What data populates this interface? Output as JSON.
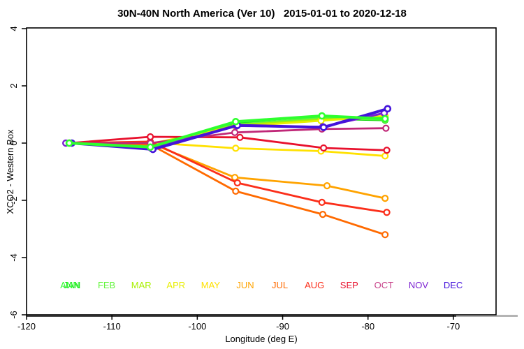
{
  "title": "30N-40N North America (Ver 10)   2015-01-01 to 2020-12-18",
  "chart_data": {
    "type": "line",
    "title": "30N-40N North America (Ver 10)   2015-01-01 to 2020-12-18",
    "xlabel": "Longitude (deg E)",
    "ylabel": "XCO2 - Western Box",
    "xlim": [
      -120,
      -65
    ],
    "ylim": [
      -6,
      4
    ],
    "grid": false,
    "x_ticks": [
      {
        "v": -120,
        "label": "-120"
      },
      {
        "v": -110,
        "label": "-110"
      },
      {
        "v": -100,
        "label": "-100"
      },
      {
        "v": -90,
        "label": "-90"
      },
      {
        "v": -80,
        "label": "-80"
      },
      {
        "v": -70,
        "label": "-70"
      }
    ],
    "y_ticks": [
      {
        "v": 4,
        "label": "4"
      },
      {
        "v": 2,
        "label": "2"
      },
      {
        "v": 0,
        "label": "0"
      },
      {
        "v": -2,
        "label": "-2"
      },
      {
        "v": -4,
        "label": "-4"
      },
      {
        "v": -6,
        "label": "-6"
      }
    ],
    "legend_position": "bottom-inside",
    "series": [
      {
        "name": "JAN",
        "color": "#0fd60f",
        "width": 2.8,
        "marker_stroke": 2.2,
        "points": [
          [
            -115,
            0
          ],
          [
            -105.5,
            -0.12
          ],
          [
            -95.5,
            0.68
          ],
          [
            -85.5,
            0.85
          ],
          [
            -78,
            0.8
          ]
        ]
      },
      {
        "name": "FEB",
        "color": "#62f53c",
        "width": 2.8,
        "marker_stroke": 2.2,
        "points": [
          [
            -115,
            0
          ],
          [
            -105.5,
            -0.1
          ],
          [
            -95.5,
            0.65
          ],
          [
            -85.5,
            0.88
          ],
          [
            -78,
            0.82
          ]
        ]
      },
      {
        "name": "MAR",
        "color": "#a8f000",
        "width": 2.8,
        "marker_stroke": 2.2,
        "points": [
          [
            -115,
            0
          ],
          [
            -105.5,
            -0.06
          ],
          [
            -95.5,
            0.62
          ],
          [
            -85.5,
            0.82
          ],
          [
            -78,
            0.9
          ]
        ]
      },
      {
        "name": "APR",
        "color": "#e8ee00",
        "width": 2.8,
        "marker_stroke": 2.2,
        "points": [
          [
            -115,
            0
          ],
          [
            -105.5,
            -0.02
          ],
          [
            -95.5,
            0.58
          ],
          [
            -85.5,
            0.78
          ],
          [
            -78,
            0.95
          ]
        ]
      },
      {
        "name": "MAY",
        "color": "#ffe100",
        "width": 2.8,
        "marker_stroke": 2.2,
        "points": [
          [
            -115,
            0
          ],
          [
            -105.5,
            0.02
          ],
          [
            -95.5,
            -0.18
          ],
          [
            -85.5,
            -0.28
          ],
          [
            -78,
            -0.45
          ]
        ]
      },
      {
        "name": "JUN",
        "color": "#ffa300",
        "width": 2.8,
        "marker_stroke": 2.2,
        "points": [
          [
            -115,
            0
          ],
          [
            -105.5,
            0.0
          ],
          [
            -95.6,
            -1.2
          ],
          [
            -84.8,
            -1.49
          ],
          [
            -78,
            -1.93
          ]
        ]
      },
      {
        "name": "JUL",
        "color": "#ff6a00",
        "width": 2.8,
        "marker_stroke": 2.2,
        "points": [
          [
            -115,
            0
          ],
          [
            -105.5,
            -0.05
          ],
          [
            -95.5,
            -1.68
          ],
          [
            -85.3,
            -2.49
          ],
          [
            -78,
            -3.2
          ]
        ]
      },
      {
        "name": "AUG",
        "color": "#fb2e1a",
        "width": 2.8,
        "marker_stroke": 2.2,
        "points": [
          [
            -115,
            0
          ],
          [
            -105.5,
            0.05
          ],
          [
            -95.3,
            -1.39
          ],
          [
            -85.4,
            -2.07
          ],
          [
            -77.8,
            -2.42
          ]
        ]
      },
      {
        "name": "SEP",
        "color": "#e8112d",
        "width": 2.8,
        "marker_stroke": 2.2,
        "points": [
          [
            -115,
            0
          ],
          [
            -105.5,
            0.22
          ],
          [
            -95.0,
            0.2
          ],
          [
            -85.2,
            -0.17
          ],
          [
            -77.8,
            -0.25
          ]
        ]
      },
      {
        "name": "OCT",
        "color": "#c02878",
        "width": 2.8,
        "marker_stroke": 2.2,
        "points": [
          [
            -115,
            0
          ],
          [
            -105.5,
            0.0
          ],
          [
            -95.6,
            0.37
          ],
          [
            -85.4,
            0.49
          ],
          [
            -77.9,
            0.52
          ]
        ]
      },
      {
        "name": "NOV",
        "color": "#7a1fd1",
        "width": 3.0,
        "marker_stroke": 2.4,
        "points": [
          [
            -115.4,
            0
          ],
          [
            -105.4,
            -0.18
          ],
          [
            -95.4,
            0.6
          ],
          [
            -85.3,
            0.57
          ],
          [
            -78.1,
            1.05
          ]
        ]
      },
      {
        "name": "DEC",
        "color": "#4413db",
        "width": 4.0,
        "marker_stroke": 2.6,
        "points": [
          [
            -114.7,
            0
          ],
          [
            -105.2,
            -0.22
          ],
          [
            -95.3,
            0.62
          ],
          [
            -85.2,
            0.55
          ],
          [
            -77.7,
            1.2
          ]
        ]
      },
      {
        "name": "ANN",
        "color": "#2eff2e",
        "width": 4.0,
        "marker_stroke": 2.6,
        "points": [
          [
            -115,
            0
          ],
          [
            -105.5,
            -0.14
          ],
          [
            -95.5,
            0.75
          ],
          [
            -85.4,
            0.95
          ],
          [
            -78,
            0.85
          ]
        ]
      }
    ],
    "legend": [
      {
        "label": "JAN",
        "color": "#0fd60f",
        "slot": 0,
        "dx": 0
      },
      {
        "label": "ANN",
        "color": "#2eff2e",
        "slot": 0,
        "dx": -3
      },
      {
        "label": "FEB",
        "color": "#62f53c",
        "slot": 1,
        "dx": 0
      },
      {
        "label": "MAR",
        "color": "#a8f000",
        "slot": 2,
        "dx": 0
      },
      {
        "label": "APR",
        "color": "#e8ee00",
        "slot": 3,
        "dx": 0
      },
      {
        "label": "MAY",
        "color": "#ffe100",
        "slot": 4,
        "dx": 0
      },
      {
        "label": "JUN",
        "color": "#ffa300",
        "slot": 5,
        "dx": 0
      },
      {
        "label": "JUL",
        "color": "#ff6a00",
        "slot": 6,
        "dx": 0
      },
      {
        "label": "AUG",
        "color": "#fb2e1a",
        "slot": 7,
        "dx": 0
      },
      {
        "label": "SEP",
        "color": "#e8112d",
        "slot": 8,
        "dx": 0
      },
      {
        "label": "OCT",
        "color": "#c8438a",
        "slot": 9,
        "dx": 0
      },
      {
        "label": "NOV",
        "color": "#7a1fd1",
        "slot": 10,
        "dx": 0
      },
      {
        "label": "DEC",
        "color": "#4413db",
        "slot": 11,
        "dx": 0
      }
    ],
    "axis_colors": {
      "box": "#000000",
      "baseline_dark": "#4a4a4a",
      "baseline_light": "#b4b4b4"
    }
  }
}
